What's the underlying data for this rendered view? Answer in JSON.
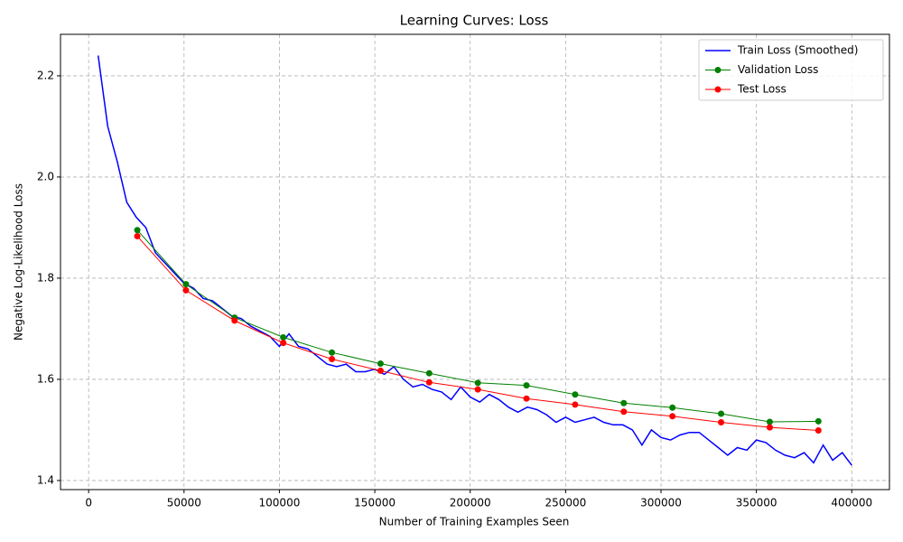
{
  "chart_data": {
    "type": "line",
    "title": "Learning Curves: Loss",
    "x_label": "Number of Training Examples Seen",
    "y_label": "Negative Log-Likelihood Loss",
    "xlim": [
      -14750,
      419750
    ],
    "ylim": [
      1.382,
      2.282
    ],
    "xticks": [
      0,
      50000,
      100000,
      150000,
      200000,
      250000,
      300000,
      350000,
      400000
    ],
    "yticks": [
      1.4,
      1.6,
      1.8,
      {
        "value": 2,
        "label": "2.0"
      },
      2.2
    ],
    "grid": true,
    "legend": "upper right",
    "series": [
      {
        "name": "Train Loss (Smoothed)",
        "color": "#0000ff",
        "marker": false,
        "x": [
          5000,
          10000,
          15000,
          20000,
          25000,
          30000,
          35000,
          40000,
          45000,
          50000,
          55000,
          60000,
          65000,
          70000,
          75000,
          80000,
          85000,
          90000,
          95000,
          100000,
          105000,
          110000,
          115000,
          120000,
          125000,
          130000,
          135000,
          140000,
          145000,
          150000,
          155000,
          160000,
          165000,
          170000,
          175000,
          180000,
          185000,
          190000,
          195000,
          200000,
          205000,
          210000,
          215000,
          220000,
          225000,
          230000,
          235000,
          240000,
          245000,
          250000,
          255000,
          260000,
          265000,
          270000,
          275000,
          280000,
          285000,
          290000,
          295000,
          300000,
          305000,
          310000,
          315000,
          320000,
          325000,
          330000,
          335000,
          340000,
          345000,
          350000,
          355000,
          360000,
          365000,
          370000,
          375000,
          380000,
          385000,
          390000,
          395000,
          400000
        ],
        "values": [
          2.24,
          2.1,
          2.03,
          1.95,
          1.92,
          1.9,
          1.85,
          1.83,
          1.81,
          1.79,
          1.78,
          1.76,
          1.755,
          1.74,
          1.725,
          1.72,
          1.705,
          1.695,
          1.685,
          1.665,
          1.69,
          1.665,
          1.66,
          1.645,
          1.63,
          1.625,
          1.63,
          1.615,
          1.615,
          1.62,
          1.61,
          1.625,
          1.6,
          1.585,
          1.59,
          1.58,
          1.575,
          1.56,
          1.585,
          1.565,
          1.555,
          1.57,
          1.56,
          1.545,
          1.535,
          1.545,
          1.54,
          1.53,
          1.515,
          1.525,
          1.515,
          1.52,
          1.525,
          1.515,
          1.51,
          1.51,
          1.5,
          1.47,
          1.5,
          1.485,
          1.48,
          1.49,
          1.495,
          1.495,
          1.48,
          1.465,
          1.45,
          1.465,
          1.46,
          1.48,
          1.475,
          1.46,
          1.45,
          1.445,
          1.455,
          1.435,
          1.47,
          1.44,
          1.455,
          1.43
        ]
      },
      {
        "name": "Validation Loss",
        "color": "#008000",
        "marker": true,
        "x": [
          25500,
          51000,
          76500,
          102000,
          127500,
          153000,
          178500,
          204000,
          229500,
          255000,
          280500,
          306000,
          331500,
          357000,
          382500
        ],
        "values": [
          1.895,
          1.788,
          1.722,
          1.683,
          1.653,
          1.631,
          1.612,
          1.593,
          1.588,
          1.57,
          1.553,
          1.544,
          1.532,
          1.516,
          1.517
        ]
      },
      {
        "name": "Test Loss",
        "color": "#ff0000",
        "marker": true,
        "x": [
          25500,
          51000,
          76500,
          102000,
          127500,
          153000,
          178500,
          204000,
          229500,
          255000,
          280500,
          306000,
          331500,
          357000,
          382500
        ],
        "values": [
          1.883,
          1.776,
          1.716,
          1.672,
          1.64,
          1.617,
          1.594,
          1.58,
          1.562,
          1.55,
          1.536,
          1.527,
          1.515,
          1.505,
          1.499
        ]
      }
    ]
  }
}
